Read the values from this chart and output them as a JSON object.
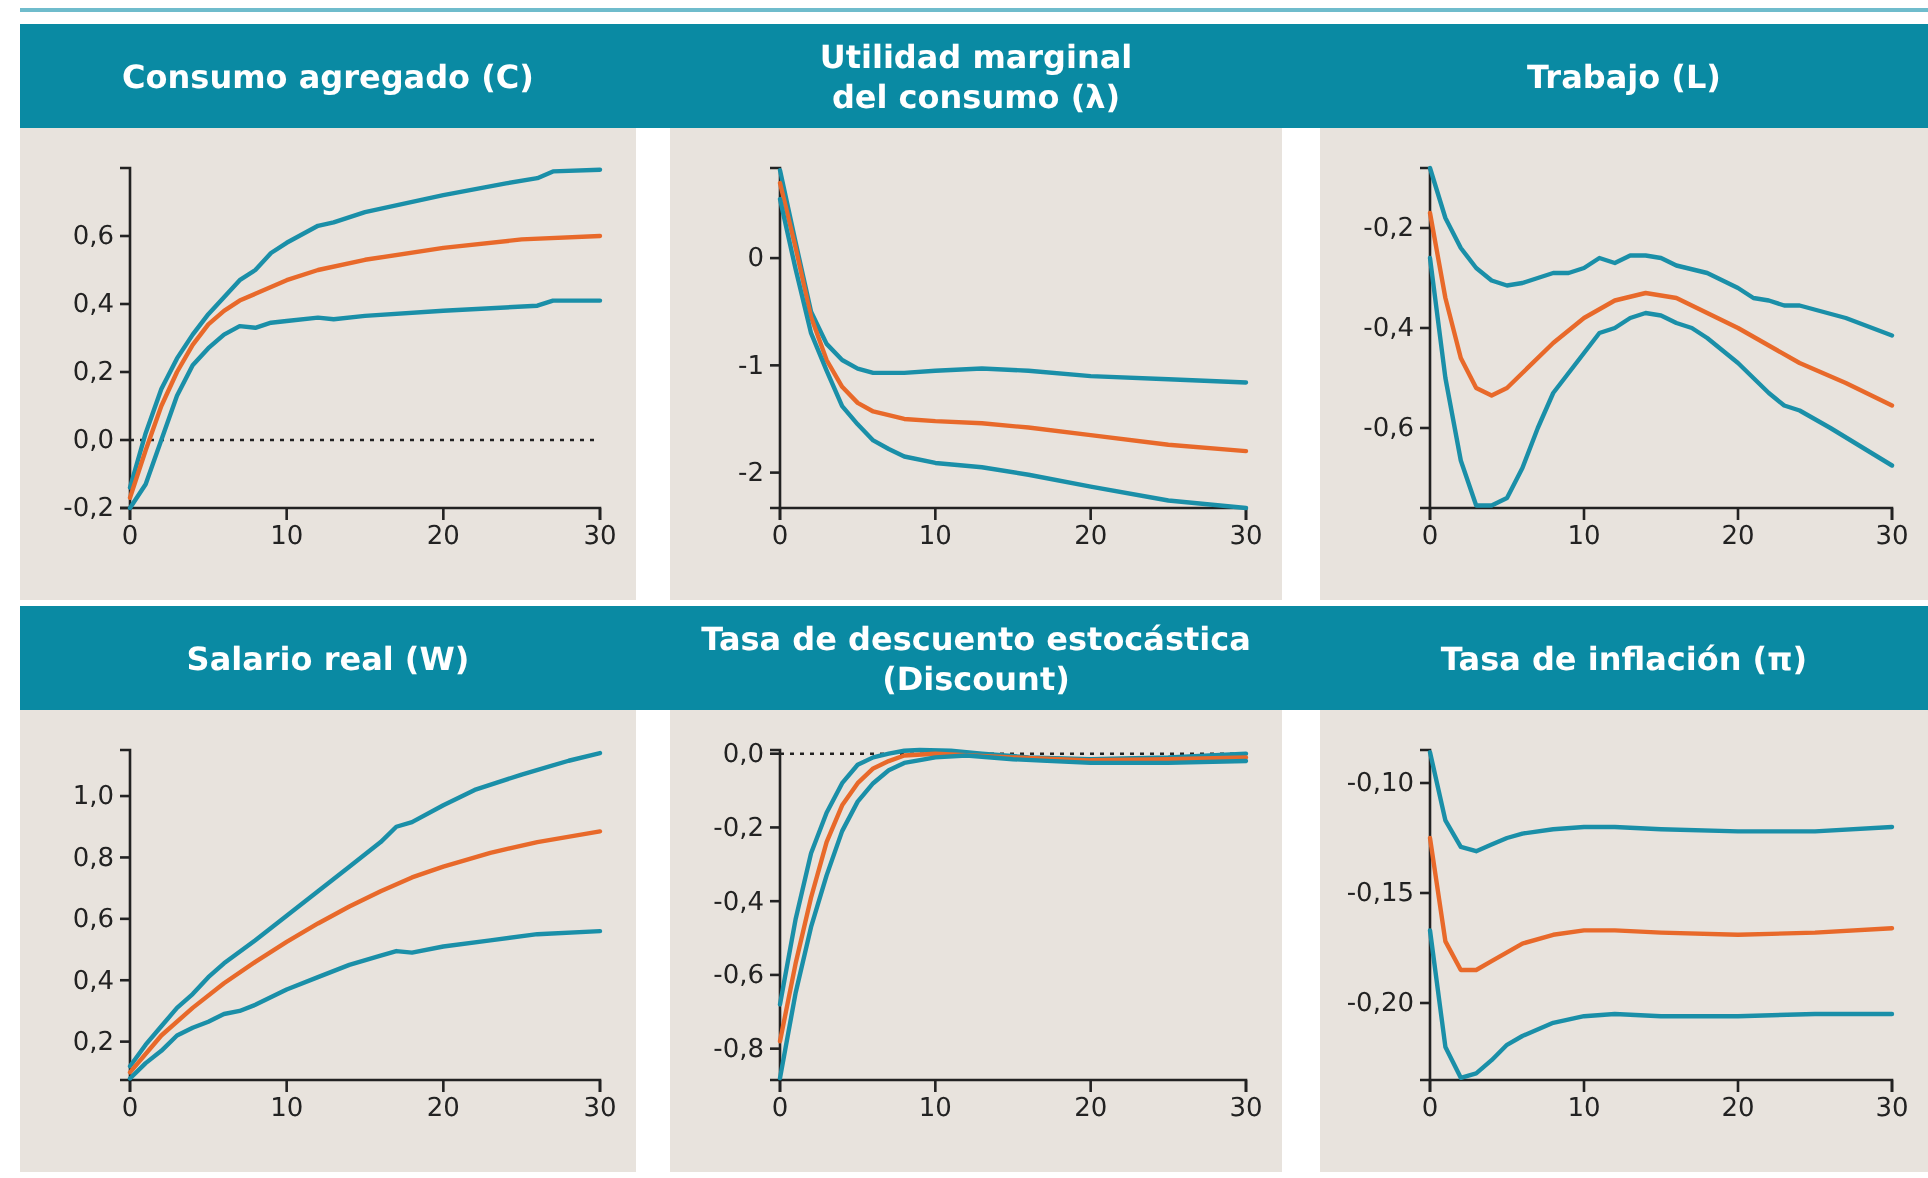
{
  "chart_data": [
    {
      "type": "line",
      "title": "Consumo agregado (C)",
      "xlim": [
        0,
        30
      ],
      "xticks": [
        0,
        10,
        20,
        30
      ],
      "ylim": [
        -0.2,
        0.8
      ],
      "yticks": [
        {
          "value": -0.2,
          "label": "-0,2"
        },
        {
          "value": 0,
          "label": "0,0"
        },
        {
          "value": 0.2,
          "label": "0,2"
        },
        {
          "value": 0.4,
          "label": "0,4"
        },
        {
          "value": 0.6,
          "label": "0,6"
        }
      ],
      "grid": false,
      "ref_lines": [
        {
          "axis": "y",
          "value": 0,
          "line_style": "dotted",
          "color": "#222222"
        }
      ],
      "series": [
        {
          "color": "#1a8fa8",
          "x": [
            0,
            1,
            2,
            3,
            4,
            5,
            6,
            7,
            8,
            9,
            10,
            12,
            13,
            15,
            20,
            24,
            26,
            27,
            30
          ],
          "values": [
            -0.14,
            0.02,
            0.15,
            0.24,
            0.31,
            0.37,
            0.42,
            0.47,
            0.5,
            0.55,
            0.58,
            0.63,
            0.64,
            0.67,
            0.72,
            0.755,
            0.77,
            0.79,
            0.795
          ]
        },
        {
          "color": "#e8692a",
          "x": [
            0,
            1,
            2,
            3,
            4,
            5,
            6,
            7,
            8,
            10,
            12,
            15,
            20,
            25,
            30
          ],
          "values": [
            -0.17,
            -0.03,
            0.1,
            0.2,
            0.28,
            0.34,
            0.38,
            0.41,
            0.43,
            0.47,
            0.5,
            0.53,
            0.565,
            0.59,
            0.6
          ]
        },
        {
          "color": "#1a8fa8",
          "x": [
            0,
            1,
            2,
            3,
            4,
            5,
            6,
            7,
            8,
            9,
            10,
            12,
            13,
            15,
            20,
            26,
            27,
            30
          ],
          "values": [
            -0.2,
            -0.13,
            0.0,
            0.13,
            0.22,
            0.27,
            0.31,
            0.335,
            0.33,
            0.345,
            0.35,
            0.36,
            0.355,
            0.365,
            0.38,
            0.395,
            0.41,
            0.41
          ]
        }
      ]
    },
    {
      "type": "line",
      "title": "Utilidad marginal\ndel consumo (λ)",
      "xlim": [
        0,
        30
      ],
      "xticks": [
        0,
        10,
        20,
        30
      ],
      "ylim": [
        -2.33,
        0.84
      ],
      "yticks": [
        -2,
        -1,
        0
      ],
      "grid": false,
      "series": [
        {
          "color": "#1a8fa8",
          "x": [
            0,
            1,
            2,
            3,
            4,
            5,
            6,
            8,
            10,
            13,
            16,
            20,
            25,
            30
          ],
          "values": [
            0.82,
            0.15,
            -0.5,
            -0.8,
            -0.95,
            -1.03,
            -1.07,
            -1.07,
            -1.05,
            -1.03,
            -1.05,
            -1.1,
            -1.13,
            -1.16
          ]
        },
        {
          "color": "#e8692a",
          "x": [
            0,
            1,
            2,
            3,
            4,
            5,
            6,
            8,
            10,
            13,
            16,
            20,
            25,
            30
          ],
          "values": [
            0.7,
            0.1,
            -0.55,
            -0.95,
            -1.2,
            -1.35,
            -1.43,
            -1.5,
            -1.52,
            -1.54,
            -1.58,
            -1.65,
            -1.74,
            -1.8
          ]
        },
        {
          "color": "#1a8fa8",
          "x": [
            0,
            1,
            2,
            3,
            4,
            5,
            6,
            7,
            8,
            10,
            13,
            16,
            20,
            25,
            30
          ],
          "values": [
            0.55,
            -0.1,
            -0.7,
            -1.05,
            -1.38,
            -1.55,
            -1.7,
            -1.78,
            -1.85,
            -1.91,
            -1.95,
            -2.02,
            -2.13,
            -2.26,
            -2.33
          ]
        }
      ]
    },
    {
      "type": "line",
      "title": "Trabajo (L)",
      "xlim": [
        0,
        30
      ],
      "xticks": [
        0,
        10,
        20,
        30
      ],
      "ylim": [
        -0.76,
        -0.08
      ],
      "yticks": [
        {
          "value": -0.6,
          "label": "-0,6"
        },
        {
          "value": -0.4,
          "label": "-0,4"
        },
        {
          "value": -0.2,
          "label": "-0,2"
        }
      ],
      "grid": false,
      "series": [
        {
          "color": "#1a8fa8",
          "x": [
            0,
            1,
            2,
            3,
            4,
            5,
            6,
            7,
            8,
            9,
            10,
            11,
            12,
            13,
            14,
            15,
            16,
            18,
            20,
            21,
            22,
            23,
            24,
            27,
            30
          ],
          "values": [
            -0.08,
            -0.18,
            -0.24,
            -0.28,
            -0.305,
            -0.315,
            -0.31,
            -0.3,
            -0.29,
            -0.29,
            -0.28,
            -0.26,
            -0.27,
            -0.255,
            -0.255,
            -0.26,
            -0.275,
            -0.29,
            -0.32,
            -0.34,
            -0.345,
            -0.355,
            -0.355,
            -0.38,
            -0.415
          ]
        },
        {
          "color": "#e8692a",
          "x": [
            0,
            1,
            2,
            3,
            4,
            5,
            6,
            8,
            10,
            12,
            14,
            16,
            18,
            20,
            24,
            27,
            30
          ],
          "values": [
            -0.17,
            -0.34,
            -0.46,
            -0.52,
            -0.535,
            -0.52,
            -0.49,
            -0.43,
            -0.38,
            -0.345,
            -0.33,
            -0.34,
            -0.37,
            -0.4,
            -0.47,
            -0.51,
            -0.555
          ]
        },
        {
          "color": "#1a8fa8",
          "x": [
            0,
            1,
            2,
            3,
            4,
            5,
            6,
            7,
            8,
            10,
            11,
            12,
            13,
            14,
            15,
            16,
            17,
            18,
            20,
            21,
            22,
            23,
            24,
            26,
            30
          ],
          "values": [
            -0.26,
            -0.5,
            -0.665,
            -0.755,
            -0.755,
            -0.74,
            -0.68,
            -0.6,
            -0.53,
            -0.45,
            -0.41,
            -0.4,
            -0.38,
            -0.37,
            -0.375,
            -0.39,
            -0.4,
            -0.42,
            -0.47,
            -0.5,
            -0.53,
            -0.555,
            -0.565,
            -0.6,
            -0.675
          ]
        }
      ]
    },
    {
      "type": "line",
      "title": "Salario real (W)",
      "xlim": [
        0,
        30
      ],
      "xticks": [
        0,
        10,
        20,
        30
      ],
      "ylim": [
        0.075,
        1.15
      ],
      "yticks": [
        {
          "value": 0.2,
          "label": "0,2"
        },
        {
          "value": 0.4,
          "label": "0,4"
        },
        {
          "value": 0.6,
          "label": "0,6"
        },
        {
          "value": 0.8,
          "label": "0,8"
        },
        {
          "value": 1.0,
          "label": "1,0"
        }
      ],
      "grid": false,
      "series": [
        {
          "color": "#1a8fa8",
          "x": [
            0,
            1,
            2,
            3,
            4,
            5,
            6,
            8,
            10,
            12,
            14,
            16,
            17,
            18,
            20,
            22,
            25,
            28,
            30
          ],
          "values": [
            0.12,
            0.19,
            0.25,
            0.31,
            0.355,
            0.41,
            0.455,
            0.53,
            0.61,
            0.69,
            0.77,
            0.85,
            0.9,
            0.915,
            0.97,
            1.02,
            1.07,
            1.115,
            1.14
          ]
        },
        {
          "color": "#e8692a",
          "x": [
            0,
            2,
            4,
            6,
            8,
            10,
            12,
            14,
            16,
            18,
            20,
            23,
            26,
            30
          ],
          "values": [
            0.1,
            0.22,
            0.31,
            0.39,
            0.46,
            0.525,
            0.585,
            0.64,
            0.69,
            0.735,
            0.77,
            0.815,
            0.85,
            0.885
          ]
        },
        {
          "color": "#1a8fa8",
          "x": [
            0,
            1,
            2,
            3,
            4,
            5,
            6,
            7,
            8,
            10,
            12,
            14,
            16,
            17,
            18,
            20,
            23,
            26,
            30
          ],
          "values": [
            0.08,
            0.13,
            0.17,
            0.22,
            0.245,
            0.265,
            0.29,
            0.3,
            0.32,
            0.37,
            0.41,
            0.45,
            0.48,
            0.495,
            0.49,
            0.51,
            0.53,
            0.55,
            0.56
          ]
        }
      ]
    },
    {
      "type": "line",
      "title": "Tasa de descuento estocástica\n(Discount)",
      "xlim": [
        0,
        30
      ],
      "xticks": [
        0,
        10,
        20,
        30
      ],
      "ylim": [
        -0.885,
        0.01
      ],
      "yticks": [
        {
          "value": -0.8,
          "label": "-0,8"
        },
        {
          "value": -0.6,
          "label": "-0,6"
        },
        {
          "value": -0.4,
          "label": "-0,4"
        },
        {
          "value": -0.2,
          "label": "-0,2"
        },
        {
          "value": 0,
          "label": "0,0"
        }
      ],
      "grid": false,
      "ref_lines": [
        {
          "axis": "y",
          "value": 0,
          "line_style": "dotted",
          "color": "#222222"
        }
      ],
      "series": [
        {
          "color": "#1a8fa8",
          "x": [
            0,
            1,
            2,
            3,
            4,
            5,
            6,
            7,
            8,
            9,
            11,
            13,
            16,
            20,
            25,
            30
          ],
          "values": [
            -0.68,
            -0.45,
            -0.27,
            -0.16,
            -0.08,
            -0.03,
            -0.01,
            0.0,
            0.008,
            0.01,
            0.008,
            0.0,
            -0.01,
            -0.015,
            -0.01,
            0.0
          ]
        },
        {
          "color": "#e8692a",
          "x": [
            0,
            1,
            2,
            3,
            4,
            5,
            6,
            7,
            8,
            10,
            15,
            20,
            25,
            30
          ],
          "values": [
            -0.78,
            -0.57,
            -0.39,
            -0.24,
            -0.14,
            -0.08,
            -0.04,
            -0.02,
            -0.005,
            0.0,
            -0.01,
            -0.018,
            -0.015,
            -0.01
          ]
        },
        {
          "color": "#1a8fa8",
          "x": [
            0,
            1,
            2,
            3,
            4,
            5,
            6,
            7,
            8,
            10,
            12,
            15,
            20,
            25,
            30
          ],
          "values": [
            -0.88,
            -0.65,
            -0.47,
            -0.33,
            -0.21,
            -0.13,
            -0.08,
            -0.045,
            -0.025,
            -0.01,
            -0.005,
            -0.015,
            -0.025,
            -0.025,
            -0.02
          ]
        }
      ]
    },
    {
      "type": "line",
      "title": "Tasa de inflación (π)",
      "xlim": [
        0,
        30
      ],
      "xticks": [
        0,
        10,
        20,
        30
      ],
      "ylim": [
        -0.235,
        -0.085
      ],
      "yticks": [
        {
          "value": -0.2,
          "label": "-0,20"
        },
        {
          "value": -0.15,
          "label": "-0,15"
        },
        {
          "value": -0.1,
          "label": "-0,10"
        }
      ],
      "grid": false,
      "series": [
        {
          "color": "#1a8fa8",
          "x": [
            0,
            1,
            2,
            3,
            4,
            5,
            6,
            8,
            10,
            12,
            15,
            20,
            25,
            30
          ],
          "values": [
            -0.086,
            -0.117,
            -0.129,
            -0.131,
            -0.128,
            -0.125,
            -0.123,
            -0.121,
            -0.12,
            -0.12,
            -0.121,
            -0.122,
            -0.122,
            -0.12
          ]
        },
        {
          "color": "#e8692a",
          "x": [
            0,
            1,
            2,
            3,
            4,
            5,
            6,
            8,
            10,
            12,
            15,
            20,
            25,
            30
          ],
          "values": [
            -0.125,
            -0.172,
            -0.185,
            -0.185,
            -0.181,
            -0.177,
            -0.173,
            -0.169,
            -0.167,
            -0.167,
            -0.168,
            -0.169,
            -0.168,
            -0.166
          ]
        },
        {
          "color": "#1a8fa8",
          "x": [
            0,
            1,
            2,
            3,
            4,
            5,
            6,
            8,
            10,
            12,
            15,
            20,
            25,
            30
          ],
          "values": [
            -0.167,
            -0.22,
            -0.234,
            -0.232,
            -0.226,
            -0.219,
            -0.215,
            -0.209,
            -0.206,
            -0.205,
            -0.206,
            -0.206,
            -0.205,
            -0.205
          ]
        }
      ]
    }
  ]
}
